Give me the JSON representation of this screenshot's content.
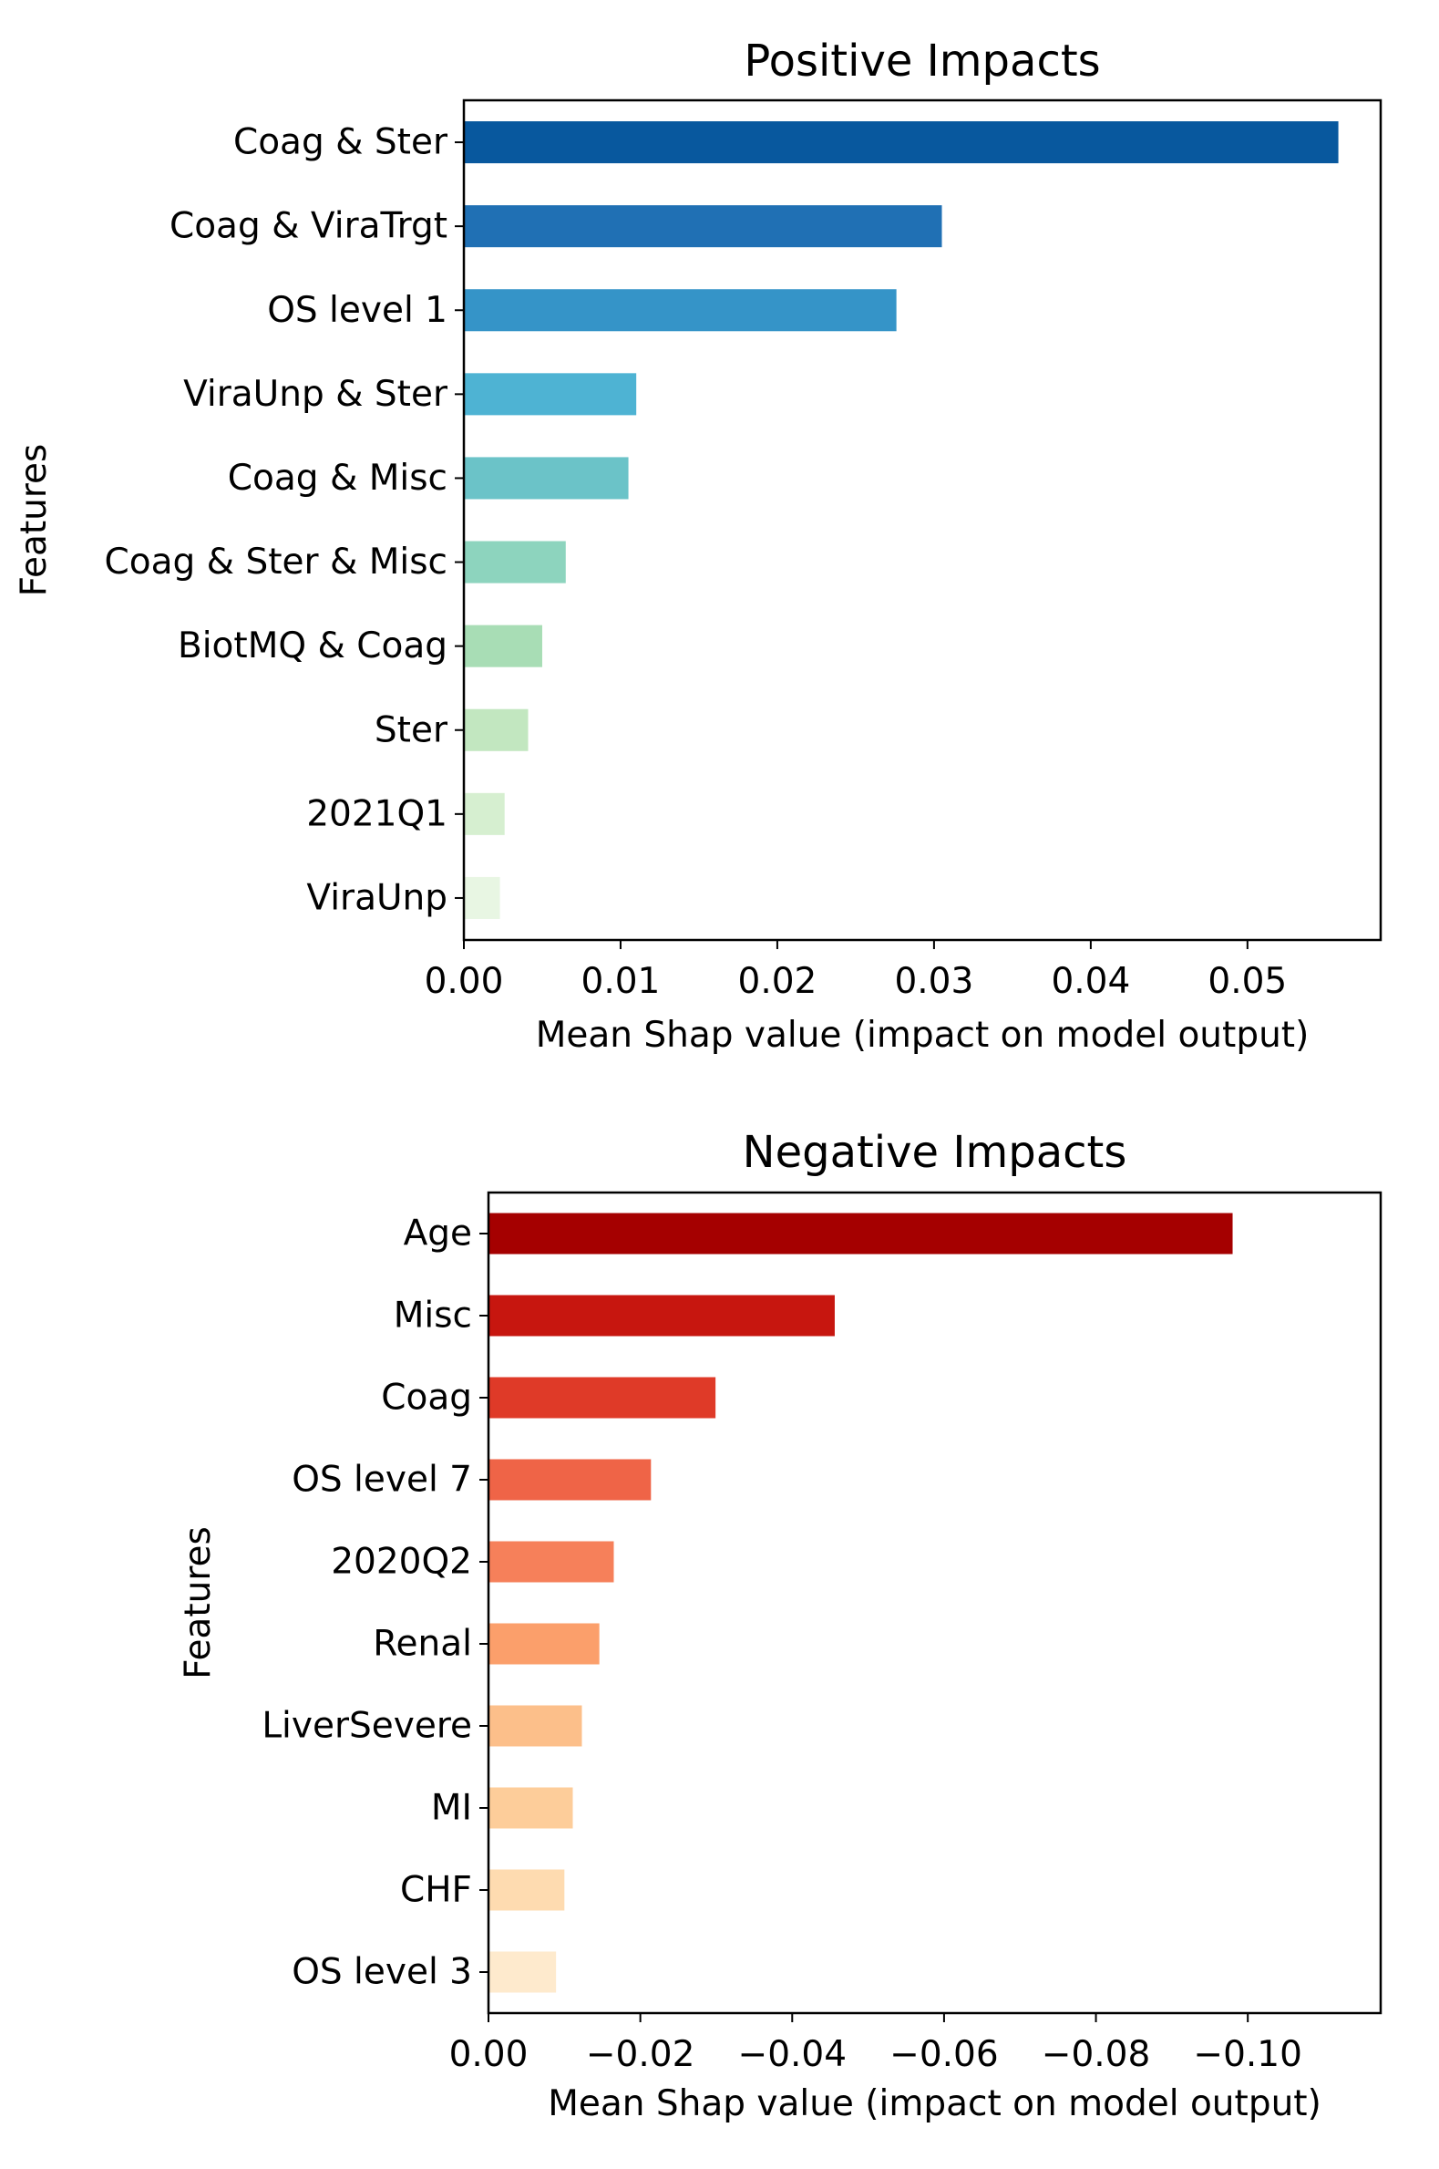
{
  "chart_data": [
    {
      "type": "bar",
      "orientation": "horizontal",
      "title": "Positive Impacts",
      "xlabel": "Mean Shap value (impact on model output)",
      "ylabel": "Features",
      "categories": [
        "Coag & Ster",
        "Coag & ViraTrgt",
        "OS level 1",
        "ViraUnp & Ster",
        "Coag & Misc",
        "Coag & Ster & Misc",
        "BiotMQ & Coag",
        "Ster",
        "2021Q1",
        "ViraUnp"
      ],
      "values": [
        0.0558,
        0.0305,
        0.0276,
        0.011,
        0.0105,
        0.0065,
        0.005,
        0.0041,
        0.0026,
        0.0023
      ],
      "colors": [
        "#08589e",
        "#2070b4",
        "#3594c8",
        "#4eb3d3",
        "#6bc3c8",
        "#8dd4be",
        "#a8ddb5",
        "#c2e7c0",
        "#d6efd0",
        "#e8f6e3"
      ],
      "xlim": [
        0,
        0.0585
      ],
      "xticks": [
        0.0,
        0.01,
        0.02,
        0.03,
        0.04,
        0.05
      ],
      "xtick_labels": [
        "0.00",
        "0.01",
        "0.02",
        "0.03",
        "0.04",
        "0.05"
      ],
      "grid": false
    },
    {
      "type": "bar",
      "orientation": "horizontal",
      "title": "Negative Impacts",
      "xlabel": "Mean Shap value (impact on model output)",
      "ylabel": "Features",
      "categories": [
        "Age",
        "Misc",
        "Coag",
        "OS level 7",
        "2020Q2",
        "Renal",
        "LiverSevere",
        "MI",
        "CHF",
        "OS level 3"
      ],
      "values": [
        -0.098,
        -0.0456,
        -0.0299,
        -0.0214,
        -0.0165,
        -0.0146,
        -0.0123,
        -0.0111,
        -0.01,
        -0.0089
      ],
      "colors": [
        "#a50000",
        "#c7160f",
        "#df3a28",
        "#ef6447",
        "#f6805a",
        "#fb9f6b",
        "#fcbf8a",
        "#fdcd9a",
        "#fedbb0",
        "#feeacd"
      ],
      "xlim": [
        0,
        -0.1175
      ],
      "xticks": [
        0.0,
        -0.02,
        -0.04,
        -0.06,
        -0.08,
        -0.1
      ],
      "xtick_labels": [
        "0.00",
        "−0.02",
        "−0.04",
        "−0.06",
        "−0.08",
        "−0.10"
      ],
      "grid": false
    }
  ]
}
